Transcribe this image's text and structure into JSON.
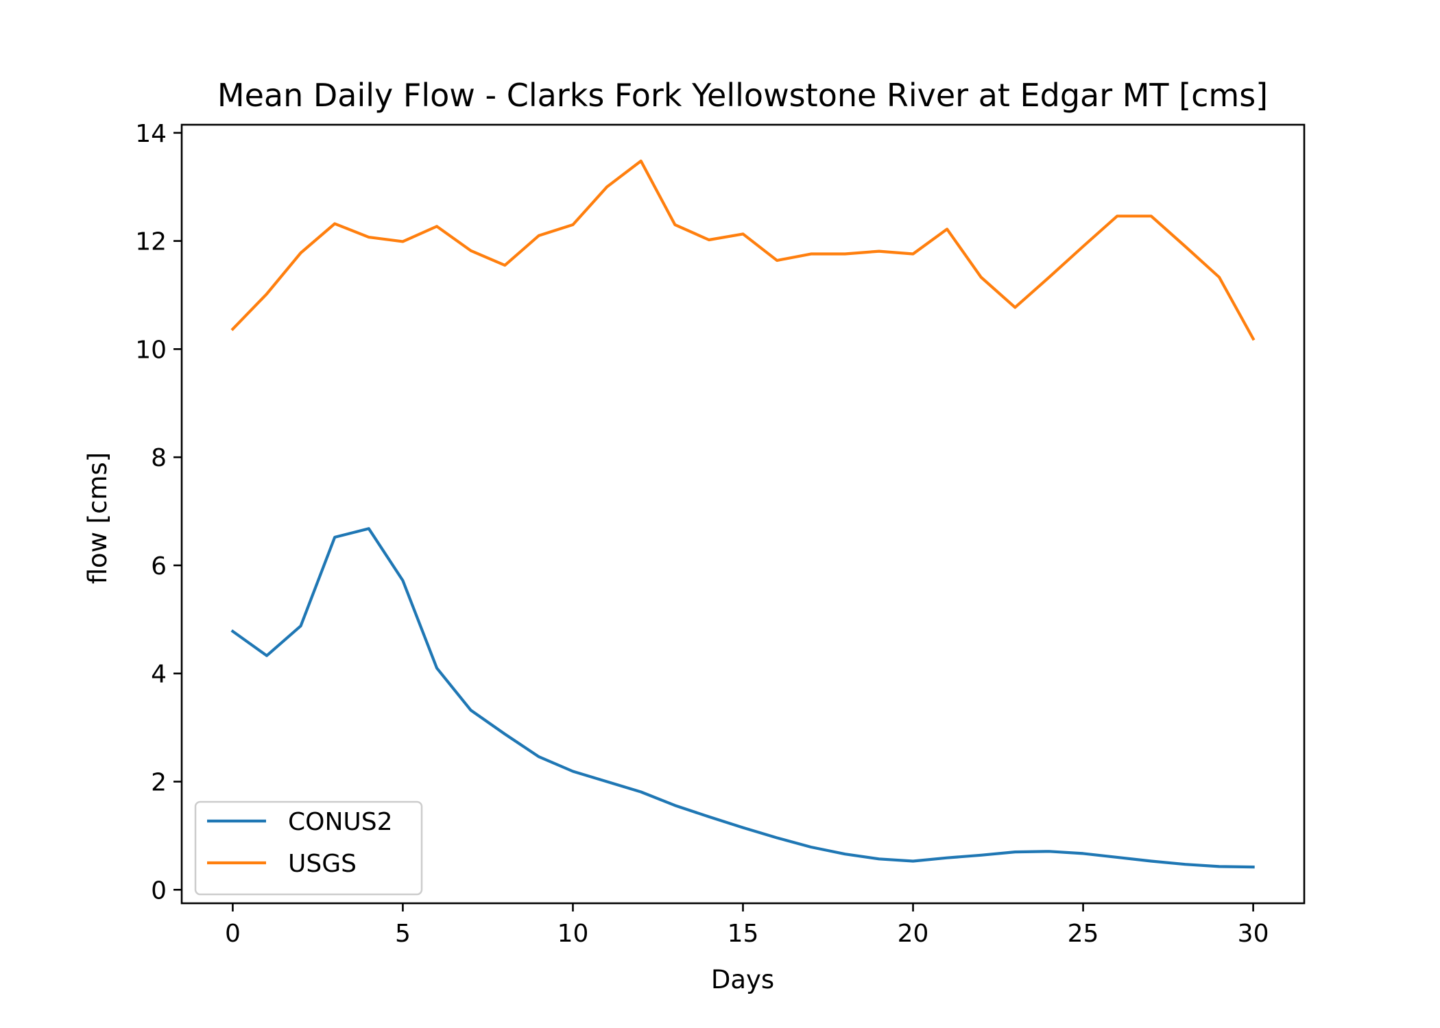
{
  "chart_data": {
    "type": "line",
    "title": "Mean Daily Flow - Clarks Fork Yellowstone River at Edgar MT [cms]",
    "xlabel": "Days",
    "ylabel": "flow [cms]",
    "xlim": [
      -1.5,
      31.5
    ],
    "ylim": [
      -0.25,
      14.15
    ],
    "xticks": [
      0,
      5,
      10,
      15,
      20,
      25,
      30
    ],
    "yticks": [
      0,
      2,
      4,
      6,
      8,
      10,
      12,
      14
    ],
    "grid": false,
    "legend_position": "lower-left",
    "x": [
      0,
      1,
      2,
      3,
      4,
      5,
      6,
      7,
      8,
      9,
      10,
      11,
      12,
      13,
      14,
      15,
      16,
      17,
      18,
      19,
      20,
      21,
      22,
      23,
      24,
      25,
      26,
      27,
      28,
      29,
      30
    ],
    "series": [
      {
        "name": "CONUS2",
        "color": "#1f77b4",
        "values": [
          4.78,
          4.33,
          4.88,
          6.52,
          6.68,
          5.72,
          4.1,
          3.32,
          2.88,
          2.46,
          2.19,
          2.0,
          1.81,
          1.56,
          1.35,
          1.15,
          0.96,
          0.79,
          0.66,
          0.57,
          0.53,
          0.59,
          0.64,
          0.7,
          0.71,
          0.67,
          0.6,
          0.53,
          0.47,
          0.43,
          0.42
        ]
      },
      {
        "name": "USGS",
        "color": "#ff7f0e",
        "values": [
          10.37,
          11.02,
          11.78,
          12.32,
          12.07,
          11.99,
          12.27,
          11.82,
          11.55,
          12.1,
          12.3,
          13.0,
          13.48,
          12.3,
          12.02,
          12.13,
          11.64,
          11.76,
          11.76,
          11.81,
          11.76,
          12.22,
          11.33,
          10.77,
          11.33,
          11.9,
          12.46,
          12.46,
          11.9,
          11.33,
          10.19
        ]
      }
    ]
  }
}
